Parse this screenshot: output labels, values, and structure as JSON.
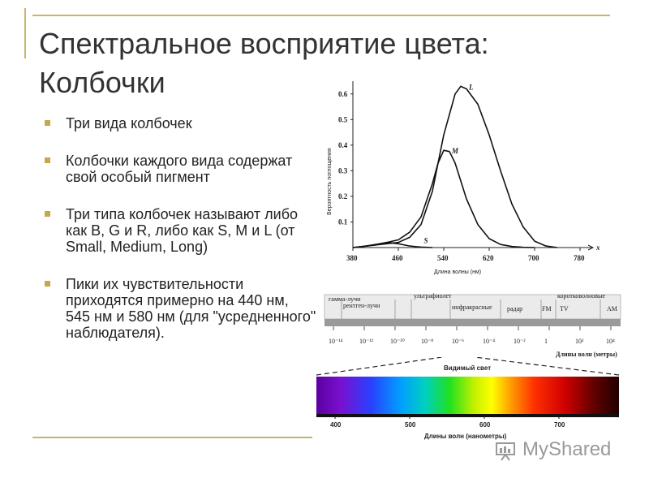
{
  "title": "Спектральное восприятие цвета: Колбочки",
  "bullets": [
    "Три вида колбочек",
    "Колбочки каждого вида содержат свой особый пигмент",
    "Три типа колбочек называют либо как B, G и R, либо как S, M и L (от Small, Medium, Long)",
    "Пики их чувствительности приходятся примерно на 440 нм, 545 нм и 580 нм (для \"усредненного\" наблюдателя)."
  ],
  "chart_data": {
    "type": "line",
    "ylabel": "Вероятность поглощения",
    "xlabel": "Длина волны (нм)",
    "x_axis_symbol": "x",
    "xticks": [
      "380",
      "460",
      "540",
      "620",
      "700",
      "780"
    ],
    "yticks": [
      "0.1",
      "0.2",
      "0.3",
      "0.4",
      "0.5",
      "0.6"
    ],
    "xlim": [
      380,
      780
    ],
    "ylim": [
      0,
      0.65
    ],
    "series": [
      {
        "name": "S",
        "x": [
          380,
          400,
          420,
          440,
          460,
          480,
          500,
          520
        ],
        "y": [
          0.0,
          0.005,
          0.012,
          0.02,
          0.015,
          0.006,
          0.002,
          0.0
        ]
      },
      {
        "name": "M",
        "x": [
          380,
          420,
          460,
          480,
          500,
          520,
          530,
          540,
          550,
          560,
          570,
          580,
          600,
          620,
          640,
          660,
          680,
          700
        ],
        "y": [
          0.0,
          0.01,
          0.03,
          0.06,
          0.12,
          0.25,
          0.33,
          0.38,
          0.375,
          0.33,
          0.26,
          0.19,
          0.09,
          0.035,
          0.012,
          0.004,
          0.001,
          0.0
        ]
      },
      {
        "name": "L",
        "x": [
          380,
          420,
          460,
          480,
          500,
          520,
          540,
          560,
          570,
          580,
          600,
          620,
          640,
          660,
          680,
          700,
          720,
          740
        ],
        "y": [
          0.0,
          0.01,
          0.02,
          0.04,
          0.09,
          0.22,
          0.44,
          0.6,
          0.63,
          0.62,
          0.56,
          0.44,
          0.3,
          0.17,
          0.08,
          0.025,
          0.006,
          0.0
        ]
      }
    ]
  },
  "em_spectrum": {
    "top_labels": [
      "гамма-лучи",
      "рентген-лучи",
      "ультрафиолет",
      "инфракрасные",
      "радар",
      "FM",
      "TV",
      "коротковолновые",
      "AM"
    ],
    "scale": [
      "10⁻¹⁴",
      "10⁻¹²",
      "10⁻¹⁰",
      "10⁻⁸",
      "10⁻⁶",
      "10⁻⁴",
      "10⁻²",
      "1",
      "10²",
      "10⁴"
    ],
    "unit_label": "Длины волн (метры)"
  },
  "visible": {
    "title": "Видимый свет",
    "ticks": [
      "400",
      "500",
      "600",
      "700"
    ],
    "unit_label": "Длины волн (нанометры)"
  },
  "watermark": {
    "text": "MyShared"
  },
  "colors": {
    "accent": "#c9a64b",
    "frame": "#c8b56a"
  }
}
